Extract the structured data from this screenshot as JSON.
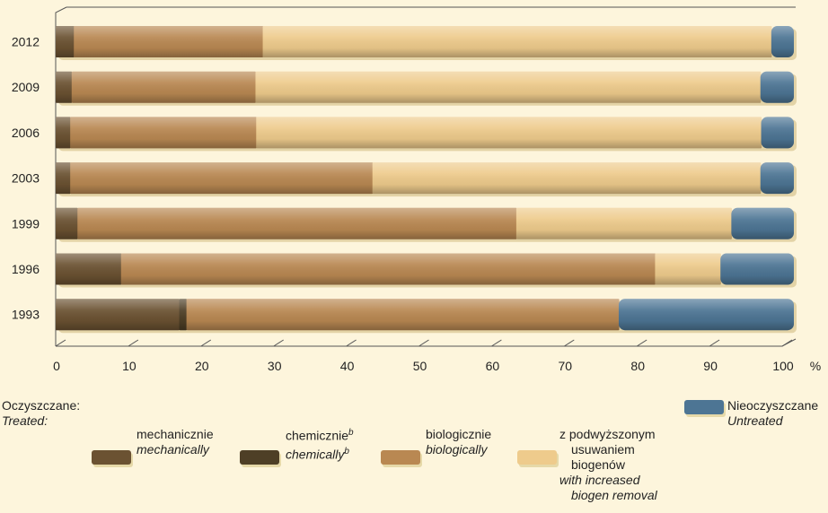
{
  "chart_data": {
    "type": "bar",
    "orientation": "horizontal",
    "stacked": true,
    "categories": [
      "2012",
      "2009",
      "2006",
      "2003",
      "1999",
      "1996",
      "1993"
    ],
    "series": [
      {
        "key": "mechanical",
        "values": [
          2.5,
          2.2,
          2.0,
          2.0,
          3.0,
          9.0,
          17.0
        ],
        "color": "#6b5232"
      },
      {
        "key": "chemical",
        "values": [
          0.0,
          0.0,
          0.0,
          0.0,
          0.0,
          0.0,
          1.0
        ],
        "color": "#4e3f26"
      },
      {
        "key": "biological",
        "values": [
          26.0,
          25.3,
          25.6,
          41.6,
          60.4,
          73.5,
          59.5
        ],
        "color": "#b98852"
      },
      {
        "key": "increased",
        "values": [
          70.0,
          69.5,
          69.5,
          53.4,
          29.6,
          9.0,
          0.0
        ],
        "color": "#eecb8c"
      },
      {
        "key": "untreated",
        "values": [
          1.5,
          3.0,
          2.9,
          3.0,
          7.0,
          8.5,
          22.5
        ],
        "color": "#4d7594"
      }
    ],
    "xlim": [
      0,
      100
    ],
    "xticks": [
      "0",
      "10",
      "20",
      "30",
      "40",
      "50",
      "60",
      "70",
      "80",
      "90",
      "100"
    ],
    "xunit": "%",
    "grid": false
  },
  "legend": {
    "head_pl": "Oczyszczane:",
    "head_en": "Treated:",
    "mechanical": {
      "pl": "mechanicznie",
      "en": "mechanically"
    },
    "chemical": {
      "pl": "chemicznie",
      "en": "chemically",
      "sup": "b"
    },
    "biological": {
      "pl": "biologicznie",
      "en": "biologically"
    },
    "increased": {
      "pl1": "z podwyższonym",
      "pl2": "usuwaniem",
      "pl3": "biogenów",
      "en1": "with increased",
      "en2": "biogen removal"
    },
    "untreated": {
      "pl": "Nieoczyszczane",
      "en": "Untreated"
    }
  }
}
